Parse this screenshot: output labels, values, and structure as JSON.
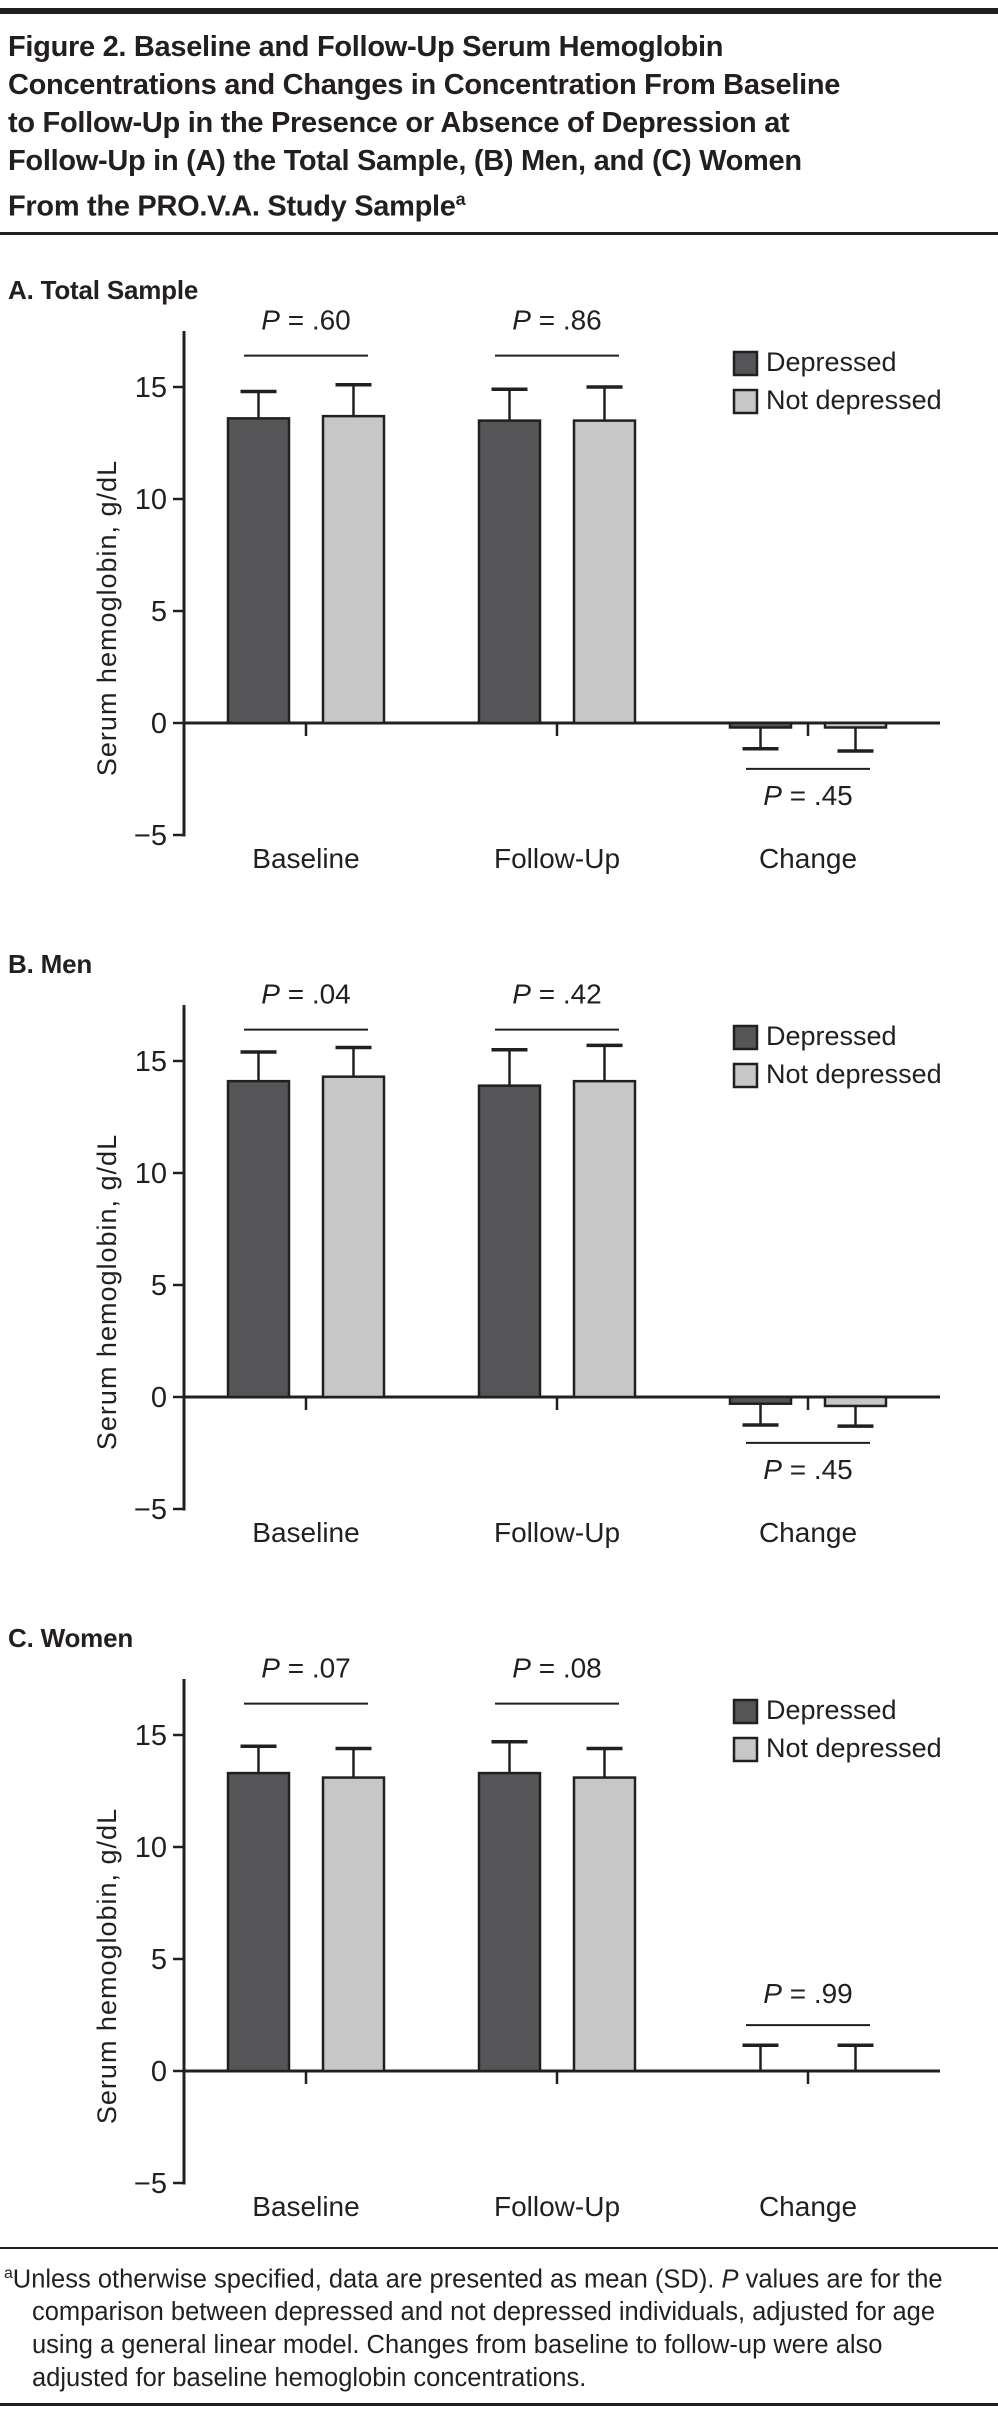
{
  "figure_title": {
    "lines": "Figure 2. Baseline and Follow-Up Serum Hemoglobin\nConcentrations and Changes in Concentration From Baseline\nto Follow-Up in the Presence or Absence of Depression at\nFollow-Up in (A) the Total Sample, (B) Men, and (C) Women\nFrom the PRO.V.A. Study Sample",
    "superscript": "a"
  },
  "colors": {
    "ink": "#231f20",
    "bar_depressed": "#555557",
    "bar_not_depressed": "#c7c7c8"
  },
  "chart_data": {
    "type": "bar",
    "ylabel": "Serum hemoglobin, g/dL",
    "ylim": [
      -5,
      17.5
    ],
    "yticks": [
      {
        "value": 15,
        "label": "15"
      },
      {
        "value": 10,
        "label": "10"
      },
      {
        "value": 5,
        "label": "5"
      },
      {
        "value": 0,
        "label": "0"
      },
      {
        "value": -5,
        "label": "−5"
      }
    ],
    "grid": "off",
    "legend_position": "top-right",
    "categories": [
      "Baseline",
      "Follow-Up",
      "Change"
    ],
    "legend": [
      {
        "name": "Depressed",
        "color": "#555557"
      },
      {
        "name": "Not depressed",
        "color": "#c7c7c8"
      }
    ],
    "panels": [
      {
        "id": "A",
        "heading": "A. Total Sample",
        "series": [
          {
            "name": "Depressed",
            "values": [
              13.6,
              13.5,
              -0.2
            ],
            "error_tips": [
              14.8,
              14.9,
              -1.15
            ]
          },
          {
            "name": "Not depressed",
            "values": [
              13.7,
              13.5,
              -0.2
            ],
            "error_tips": [
              15.1,
              15.0,
              -1.25
            ]
          }
        ],
        "p_values": [
          {
            "category": "Baseline",
            "label": "P = .60",
            "side": "above"
          },
          {
            "category": "Follow-Up",
            "label": "P = .86",
            "side": "above"
          },
          {
            "category": "Change",
            "label": "P = .45",
            "side": "below"
          }
        ]
      },
      {
        "id": "B",
        "heading": "B. Men",
        "series": [
          {
            "name": "Depressed",
            "values": [
              14.1,
              13.9,
              -0.3
            ],
            "error_tips": [
              15.4,
              15.5,
              -1.25
            ]
          },
          {
            "name": "Not depressed",
            "values": [
              14.3,
              14.1,
              -0.4
            ],
            "error_tips": [
              15.6,
              15.7,
              -1.3
            ]
          }
        ],
        "p_values": [
          {
            "category": "Baseline",
            "label": "P = .04",
            "side": "above"
          },
          {
            "category": "Follow-Up",
            "label": "P = .42",
            "side": "above"
          },
          {
            "category": "Change",
            "label": "P = .45",
            "side": "below"
          }
        ]
      },
      {
        "id": "C",
        "heading": "C. Women",
        "series": [
          {
            "name": "Depressed",
            "values": [
              13.3,
              13.3,
              0.05
            ],
            "error_tips": [
              14.5,
              14.7,
              1.15
            ]
          },
          {
            "name": "Not depressed",
            "values": [
              13.1,
              13.1,
              0.05
            ],
            "error_tips": [
              14.4,
              14.4,
              1.15
            ]
          }
        ],
        "p_values": [
          {
            "category": "Baseline",
            "label": "P = .07",
            "side": "above"
          },
          {
            "category": "Follow-Up",
            "label": "P = .08",
            "side": "above"
          },
          {
            "category": "Change",
            "label": "P = .99",
            "side": "above"
          }
        ]
      }
    ]
  },
  "footnote": {
    "superscript": "a",
    "segments": [
      {
        "style": "normal",
        "text": "Unless otherwise specified, data are presented as mean (SD). "
      },
      {
        "style": "italic",
        "text": "P"
      },
      {
        "style": "normal",
        "text": " values are for the comparison between depressed and not depressed individuals, adjusted for age using a general linear model. Changes from baseline to follow-up were also adjusted for baseline hemoglobin concentrations."
      }
    ]
  }
}
